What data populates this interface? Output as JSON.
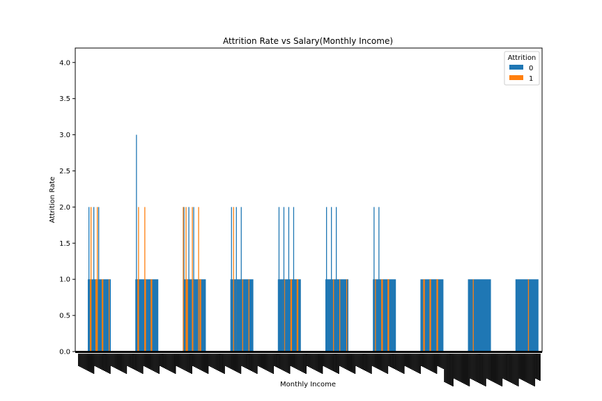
{
  "chart_data": {
    "type": "bar",
    "title": "Attrition Rate vs Salary(Monthly Income)",
    "xlabel": "Monthly Income",
    "ylabel": "Attrition Rate",
    "ylim": [
      0,
      4.2
    ],
    "yticks": [
      "0.0",
      "0.5",
      "1.0",
      "1.5",
      "2.0",
      "2.5",
      "3.0",
      "3.5",
      "4.0"
    ],
    "grid": false,
    "legend": {
      "title": "Attrition",
      "placement": "top-right",
      "entries": [
        "0",
        "1"
      ]
    },
    "colors": {
      "0": "#1f77b4",
      "1": "#ff7f0e"
    },
    "groups": [
      {
        "spikes_0": [
          2,
          2,
          2
        ],
        "spikes_1": [
          2,
          2
        ],
        "lines_1": 6
      },
      {
        "spikes_0": [
          3
        ],
        "spikes_1": [
          2,
          2
        ],
        "lines_1": 6
      },
      {
        "spikes_0": [
          2,
          2,
          2
        ],
        "spikes_1": [
          2,
          2,
          2,
          2
        ],
        "lines_1": 6
      },
      {
        "spikes_0": [
          2,
          2,
          2
        ],
        "spikes_1": [
          2
        ],
        "lines_1": 3
      },
      {
        "spikes_0": [
          2,
          2,
          2,
          2
        ],
        "spikes_1": [],
        "lines_1": 6
      },
      {
        "spikes_0": [
          2,
          2,
          2
        ],
        "spikes_1": [],
        "lines_1": 3
      },
      {
        "spikes_0": [
          2,
          2
        ],
        "spikes_1": [],
        "lines_1": 5
      },
      {
        "spikes_0": [],
        "spikes_1": [],
        "lines_1": 6
      },
      {
        "spikes_0": [],
        "spikes_1": [],
        "lines_1": 1
      },
      {
        "spikes_0": [],
        "spikes_1": [],
        "lines_1": 1
      }
    ]
  }
}
